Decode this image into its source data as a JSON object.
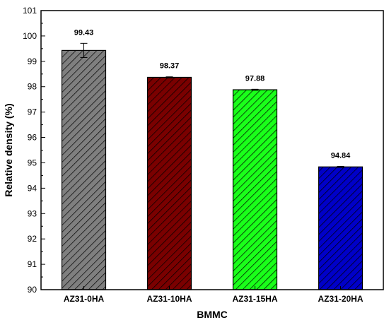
{
  "chart_data": {
    "type": "bar",
    "categories": [
      "AZ31-0HA",
      "AZ31-10HA",
      "AZ31-15HA",
      "AZ31-20HA"
    ],
    "values": [
      99.43,
      98.37,
      97.88,
      94.84
    ],
    "value_labels": [
      "99.43",
      "98.37",
      "97.88",
      "94.84"
    ],
    "errors": [
      0.28,
      0.02,
      0.02,
      0.02
    ],
    "colors": [
      "#7f7f7f",
      "#7a0000",
      "#1aff1a",
      "#0000c8"
    ],
    "hatch": "diagonal",
    "xlabel": "BMMC",
    "ylabel": "Relative density (%)",
    "ylim": [
      90,
      101
    ],
    "yticks": [
      "90",
      "91",
      "92",
      "93",
      "94",
      "95",
      "96",
      "97",
      "98",
      "99",
      "100",
      "101"
    ],
    "grid": false
  }
}
